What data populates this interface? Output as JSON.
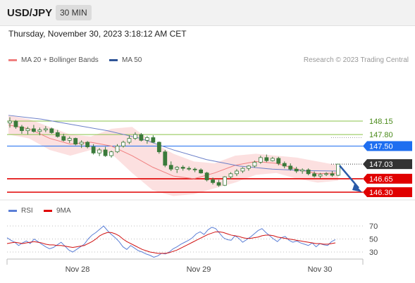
{
  "header": {
    "symbol": "USD/JPY",
    "interval": "30 MIN"
  },
  "datetime": "Thursday, November 30, 2023 3:18:12 AM CET",
  "legend": {
    "ma20_label": "MA 20 + Bollinger Bands",
    "ma50_label": "MA 50",
    "research": "Research © 2023 Trading Central",
    "rsi_label": "RSI",
    "nine_ma_label": "9MA"
  },
  "colors": {
    "candle": "#3a7a3a",
    "ma20": "#f08080",
    "band_fill": "#fbd5d5",
    "ma50": "#6b7fc8",
    "support": "#e00000",
    "resistance": "#8bc34a",
    "pivot": "#1e6ef0",
    "price": "#333333",
    "arrow": "#2a5aa8",
    "rsi": "#5b7fd6",
    "rsi_ma": "#d01010"
  },
  "chart_data": [
    {
      "type": "candlestick",
      "title": "USD/JPY 30 MIN",
      "x_ticks": [
        "Nov 28",
        "Nov 29",
        "Nov 30"
      ],
      "ylim": [
        146.0,
        148.55
      ],
      "current_price": 147.03,
      "ohlc": [
        [
          148.1,
          148.25,
          147.98,
          148.15
        ],
        [
          148.15,
          148.18,
          147.95,
          148.0
        ],
        [
          148.0,
          148.05,
          147.82,
          147.9
        ],
        [
          147.9,
          148.0,
          147.8,
          147.95
        ],
        [
          147.95,
          148.05,
          147.85,
          147.88
        ],
        [
          147.88,
          147.98,
          147.78,
          147.92
        ],
        [
          147.92,
          148.02,
          147.86,
          147.95
        ],
        [
          147.95,
          147.98,
          147.82,
          147.85
        ],
        [
          147.85,
          147.92,
          147.72,
          147.75
        ],
        [
          147.75,
          147.82,
          147.62,
          147.65
        ],
        [
          147.65,
          147.75,
          147.58,
          147.7
        ],
        [
          147.7,
          147.72,
          147.52,
          147.55
        ],
        [
          147.55,
          147.65,
          147.45,
          147.6
        ],
        [
          147.6,
          147.63,
          147.44,
          147.48
        ],
        [
          147.48,
          147.55,
          147.28,
          147.32
        ],
        [
          147.32,
          147.45,
          147.24,
          147.4
        ],
        [
          147.4,
          147.48,
          147.22,
          147.25
        ],
        [
          147.25,
          147.38,
          147.2,
          147.35
        ],
        [
          147.35,
          147.55,
          147.32,
          147.5
        ],
        [
          147.5,
          147.64,
          147.46,
          147.6
        ],
        [
          147.6,
          147.78,
          147.55,
          147.7
        ],
        [
          147.7,
          147.86,
          147.66,
          147.8
        ],
        [
          147.8,
          147.84,
          147.62,
          147.65
        ],
        [
          147.65,
          147.76,
          147.56,
          147.72
        ],
        [
          147.72,
          147.78,
          147.58,
          147.6
        ],
        [
          147.6,
          147.62,
          147.3,
          147.35
        ],
        [
          147.35,
          147.4,
          146.95,
          147.0
        ],
        [
          147.0,
          147.1,
          146.85,
          146.9
        ],
        [
          146.9,
          146.98,
          146.8,
          146.95
        ],
        [
          146.95,
          147.0,
          146.86,
          146.92
        ],
        [
          146.92,
          146.97,
          146.86,
          146.9
        ],
        [
          146.9,
          146.94,
          146.82,
          146.88
        ],
        [
          146.88,
          146.92,
          146.78,
          146.8
        ],
        [
          146.8,
          146.83,
          146.58,
          146.62
        ],
        [
          146.62,
          146.68,
          146.5,
          146.55
        ],
        [
          146.55,
          146.62,
          146.44,
          146.48
        ],
        [
          146.48,
          146.72,
          146.46,
          146.7
        ],
        [
          146.7,
          146.82,
          146.64,
          146.78
        ],
        [
          146.78,
          146.9,
          146.72,
          146.85
        ],
        [
          146.85,
          146.95,
          146.8,
          146.92
        ],
        [
          146.92,
          147.0,
          146.86,
          146.98
        ],
        [
          146.98,
          147.12,
          146.94,
          147.08
        ],
        [
          147.08,
          147.25,
          147.04,
          147.2
        ],
        [
          147.2,
          147.28,
          147.08,
          147.12
        ],
        [
          147.12,
          147.22,
          147.1,
          147.18
        ],
        [
          147.18,
          147.22,
          147.0,
          147.05
        ],
        [
          147.05,
          147.1,
          146.92,
          146.98
        ],
        [
          146.98,
          147.05,
          146.86,
          146.9
        ],
        [
          146.9,
          146.96,
          146.8,
          146.85
        ],
        [
          146.85,
          146.92,
          146.78,
          146.88
        ],
        [
          146.88,
          146.92,
          146.74,
          146.78
        ],
        [
          146.78,
          146.84,
          146.68,
          146.72
        ],
        [
          146.72,
          146.8,
          146.66,
          146.76
        ],
        [
          146.76,
          146.82,
          146.72,
          146.78
        ],
        [
          146.78,
          146.85,
          146.7,
          146.74
        ],
        [
          146.74,
          147.03,
          146.72,
          147.03
        ]
      ],
      "levels": [
        {
          "price": 148.15,
          "label": "148.15",
          "kind": "resistance"
        },
        {
          "price": 147.8,
          "label": "147.80",
          "kind": "resistance"
        },
        {
          "price": 147.5,
          "label": "147.50",
          "kind": "pivot"
        },
        {
          "price": 146.65,
          "label": "146.65",
          "kind": "support"
        },
        {
          "price": 146.3,
          "label": "146.30",
          "kind": "support"
        }
      ],
      "ma50": [
        148.3,
        148.2,
        148.05,
        147.9,
        147.7,
        147.4,
        147.15,
        146.98,
        146.9,
        146.86,
        146.85
      ],
      "ma20": [
        148.05,
        147.95,
        147.7,
        147.55,
        147.6,
        147.5,
        147.25,
        146.95,
        146.72,
        146.65,
        146.8,
        147.0,
        147.1,
        147.05,
        146.9,
        146.78,
        146.8
      ],
      "band_upper": [
        148.3,
        148.2,
        148.0,
        147.8,
        147.75,
        147.95,
        148.0,
        147.6,
        147.3,
        147.1,
        147.05,
        147.25,
        147.3,
        147.25,
        147.2,
        147.1,
        147.0
      ],
      "band_lower": [
        147.8,
        147.7,
        147.4,
        147.25,
        147.4,
        147.3,
        146.8,
        146.35,
        146.2,
        146.25,
        146.4,
        146.55,
        146.75,
        146.8,
        146.65,
        146.55,
        146.6
      ],
      "arrow_target": 146.3
    },
    {
      "type": "line",
      "title": "RSI",
      "yticks": [
        70,
        50,
        30
      ],
      "ylim": [
        10,
        85
      ],
      "series": [
        {
          "name": "RSI",
          "values": [
            52,
            48,
            45,
            40,
            44,
            47,
            43,
            50,
            46,
            42,
            38,
            35,
            37,
            41,
            45,
            39,
            33,
            30,
            34,
            38,
            42,
            50,
            56,
            60,
            65,
            70,
            63,
            57,
            52,
            46,
            38,
            34,
            40,
            36,
            32,
            30,
            27,
            25,
            22,
            24,
            28,
            27,
            30,
            35,
            38,
            42,
            45,
            48,
            52,
            58,
            61,
            57,
            64,
            68,
            66,
            59,
            52,
            49,
            48,
            55,
            51,
            45,
            49,
            53,
            58,
            63,
            66,
            60,
            55,
            50,
            46,
            52,
            54,
            48,
            45,
            47,
            44,
            42,
            40,
            44,
            38,
            43,
            41,
            40,
            46,
            49
          ]
        },
        {
          "name": "9MA",
          "values": [
            43,
            44,
            45,
            44,
            43,
            44,
            45,
            46,
            45,
            44,
            42,
            41,
            41,
            40,
            40,
            39,
            38,
            37,
            38,
            39,
            40,
            43,
            46,
            50,
            55,
            58,
            60,
            60,
            58,
            55,
            50,
            46,
            43,
            40,
            37,
            34,
            32,
            30,
            29,
            28,
            28,
            28,
            29,
            31,
            33,
            36,
            39,
            42,
            45,
            48,
            51,
            54,
            57,
            59,
            61,
            61,
            60,
            58,
            56,
            55,
            54,
            52,
            51,
            51,
            52,
            53,
            55,
            56,
            56,
            55,
            53,
            52,
            51,
            50,
            49,
            48,
            47,
            46,
            45,
            44,
            43,
            43,
            42,
            42,
            43,
            44
          ]
        }
      ]
    }
  ]
}
